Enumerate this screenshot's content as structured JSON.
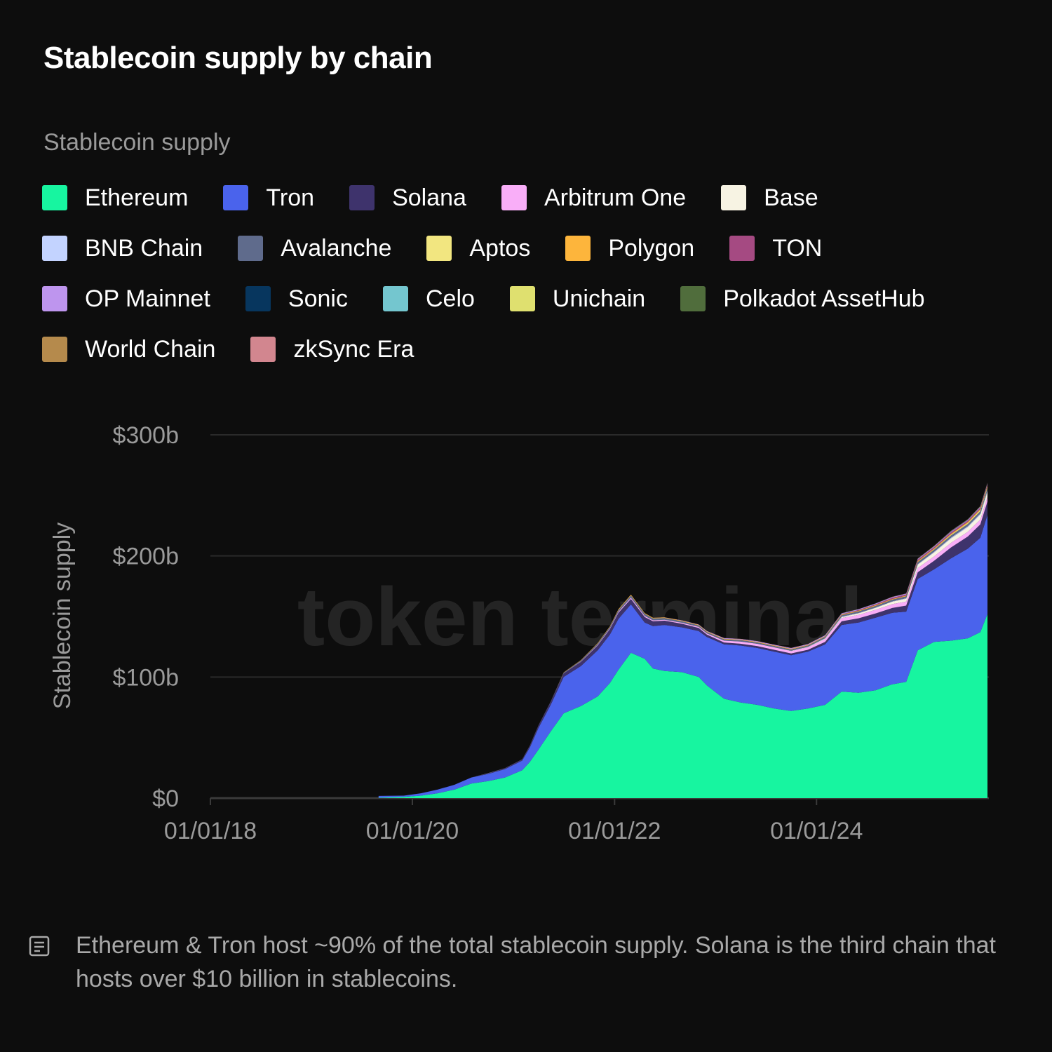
{
  "title": "Stablecoin supply by chain",
  "legend_title": "Stablecoin supply",
  "legend": [
    {
      "label": "Ethereum",
      "color": "#17f5a0"
    },
    {
      "label": "Tron",
      "color": "#4a63ec"
    },
    {
      "label": "Solana",
      "color": "#3e336c"
    },
    {
      "label": "Arbitrum One",
      "color": "#f9aef8"
    },
    {
      "label": "Base",
      "color": "#f7f3e3"
    },
    {
      "label": "BNB Chain",
      "color": "#c3d3ff"
    },
    {
      "label": "Avalanche",
      "color": "#5f6b8c"
    },
    {
      "label": "Aptos",
      "color": "#f2e680"
    },
    {
      "label": "Polygon",
      "color": "#fdb53c"
    },
    {
      "label": "TON",
      "color": "#a54a82"
    },
    {
      "label": "OP Mainnet",
      "color": "#be95ee"
    },
    {
      "label": "Sonic",
      "color": "#07365e"
    },
    {
      "label": "Celo",
      "color": "#74c6cf"
    },
    {
      "label": "Unichain",
      "color": "#dfe06f"
    },
    {
      "label": "Polkadot AssetHub",
      "color": "#506d3c"
    },
    {
      "label": "World Chain",
      "color": "#b58a4c"
    },
    {
      "label": "zkSync Era",
      "color": "#d2868f"
    }
  ],
  "watermark": "token terminal_",
  "note": {
    "icon": "note-icon",
    "text": "Ethereum & Tron host ~90% of the total stablecoin supply. Solana is the third chain that hosts over $10 billion in stablecoins."
  },
  "chart_data": {
    "type": "area",
    "stacked": true,
    "title": "Stablecoin supply by chain",
    "ylabel": "Stablecoin supply",
    "xlabel": "",
    "x_ticks": [
      "01/01/18",
      "01/01/20",
      "01/01/22",
      "01/01/24"
    ],
    "y_ticks": [
      "$0",
      "$100b",
      "$200b",
      "$300b"
    ],
    "ylim": [
      0,
      300
    ],
    "xlim": [
      "2018-01-01",
      "2025-09-15"
    ],
    "y_unit": "billion USD",
    "grid": "horizontal",
    "legend_position": "top",
    "x": [
      "2019-09-01",
      "2019-12-01",
      "2020-02-01",
      "2020-04-01",
      "2020-06-01",
      "2020-08-01",
      "2020-10-01",
      "2020-12-01",
      "2021-02-01",
      "2021-03-01",
      "2021-04-01",
      "2021-05-15",
      "2021-07-01",
      "2021-09-01",
      "2021-11-01",
      "2021-12-15",
      "2022-01-15",
      "2022-03-01",
      "2022-04-20",
      "2022-05-20",
      "2022-07-01",
      "2022-09-01",
      "2022-11-01",
      "2022-12-01",
      "2023-02-01",
      "2023-04-01",
      "2023-06-01",
      "2023-08-01",
      "2023-10-01",
      "2023-12-01",
      "2024-02-01",
      "2024-04-01",
      "2024-06-01",
      "2024-08-01",
      "2024-10-01",
      "2024-11-20",
      "2025-01-01",
      "2025-03-01",
      "2025-05-01",
      "2025-07-01",
      "2025-08-15",
      "2025-09-10"
    ],
    "series": [
      {
        "name": "Ethereum",
        "values": [
          0.3,
          1.0,
          2.0,
          4.0,
          7.0,
          12.0,
          14.0,
          17.0,
          23.0,
          30.0,
          40.0,
          55.0,
          70.0,
          76.0,
          84.0,
          95.0,
          106.0,
          120.0,
          115.0,
          107.0,
          105.0,
          104.0,
          100.0,
          93.0,
          82.0,
          79.0,
          77.0,
          74.0,
          72.0,
          74.0,
          77.0,
          88.0,
          87.0,
          89.0,
          94.0,
          96.0,
          122.0,
          129.0,
          130.0,
          132.0,
          137.0,
          152.0
        ]
      },
      {
        "name": "Tron",
        "values": [
          1.5,
          1.0,
          2.0,
          3.0,
          4.0,
          5.0,
          6.0,
          7.0,
          8.0,
          12.0,
          18.0,
          22.0,
          30.0,
          33.0,
          38.0,
          40.0,
          42.0,
          40.0,
          30.0,
          35.0,
          38.0,
          37.0,
          38.0,
          40.0,
          45.0,
          47.0,
          47.0,
          47.0,
          46.0,
          47.0,
          50.0,
          55.0,
          58.0,
          60.0,
          59.0,
          58.0,
          59.0,
          60.0,
          68.0,
          74.0,
          78.0,
          82.0
        ]
      },
      {
        "name": "Solana",
        "values": [
          0.0,
          0.0,
          0.0,
          0.0,
          0.0,
          0.0,
          0.5,
          0.7,
          1.0,
          1.5,
          2.0,
          2.5,
          3.0,
          3.5,
          4.0,
          4.5,
          5.0,
          4.5,
          4.5,
          4.0,
          3.5,
          3.0,
          2.5,
          2.0,
          1.5,
          1.5,
          1.5,
          1.5,
          1.5,
          1.5,
          2.0,
          3.0,
          3.5,
          3.5,
          4.0,
          5.0,
          5.5,
          7.0,
          9.0,
          10.0,
          11.0,
          11.0
        ]
      },
      {
        "name": "Arbitrum One",
        "values": [
          0,
          0,
          0,
          0,
          0,
          0,
          0,
          0,
          0,
          0,
          0,
          0,
          0,
          0.3,
          0.5,
          0.6,
          0.8,
          1.0,
          0.9,
          0.8,
          0.8,
          0.8,
          0.9,
          1.0,
          1.5,
          1.8,
          1.9,
          2.0,
          2.0,
          2.1,
          2.4,
          2.7,
          2.9,
          3.0,
          3.2,
          3.3,
          3.5,
          3.6,
          3.8,
          3.9,
          4.0,
          4.0
        ]
      },
      {
        "name": "Base",
        "values": [
          0,
          0,
          0,
          0,
          0,
          0,
          0,
          0,
          0,
          0,
          0,
          0,
          0,
          0,
          0,
          0,
          0,
          0,
          0,
          0,
          0,
          0,
          0,
          0,
          0,
          0,
          0,
          0,
          0.2,
          0.3,
          0.5,
          0.8,
          1.2,
          1.6,
          2.0,
          2.4,
          2.8,
          3.2,
          3.6,
          3.9,
          4.1,
          4.2
        ]
      },
      {
        "name": "BNB Chain",
        "values": [
          0,
          0,
          0,
          0,
          0,
          0,
          0.1,
          0.1,
          0.1,
          0.1,
          0.1,
          0.1,
          0.1,
          0.1,
          0.1,
          0.1,
          0.1,
          0.1,
          0.1,
          0.1,
          0.1,
          0.1,
          0.1,
          0.1,
          0.1,
          0.1,
          0.1,
          0.1,
          0.1,
          0.1,
          0.2,
          0.3,
          0.3,
          0.3,
          0.3,
          0.4,
          0.5,
          0.6,
          0.7,
          0.8,
          0.9,
          1.0
        ]
      },
      {
        "name": "Avalanche",
        "values": [
          0,
          0,
          0,
          0,
          0,
          0,
          0,
          0,
          0,
          0,
          0,
          0.2,
          0.5,
          0.8,
          1.0,
          1.2,
          1.5,
          1.8,
          1.7,
          1.5,
          1.3,
          1.2,
          1.1,
          1.0,
          1.0,
          1.0,
          1.0,
          1.0,
          1.0,
          1.0,
          1.1,
          1.2,
          1.3,
          1.3,
          1.4,
          1.5,
          1.6,
          1.7,
          1.8,
          1.8,
          1.9,
          2.0
        ]
      },
      {
        "name": "Aptos",
        "values": [
          0,
          0,
          0,
          0,
          0,
          0,
          0,
          0,
          0,
          0,
          0,
          0,
          0,
          0,
          0,
          0,
          0,
          0,
          0,
          0,
          0,
          0,
          0,
          0,
          0,
          0,
          0,
          0,
          0,
          0,
          0,
          0,
          0,
          0,
          0,
          0,
          0.2,
          0.4,
          0.6,
          0.8,
          1.0,
          1.0
        ]
      },
      {
        "name": "Polygon",
        "values": [
          0,
          0,
          0,
          0,
          0,
          0,
          0,
          0,
          0,
          0,
          0,
          0,
          0.2,
          0.3,
          0.4,
          0.5,
          0.6,
          0.6,
          0.6,
          0.5,
          0.5,
          0.5,
          0.5,
          0.5,
          0.5,
          0.5,
          0.5,
          0.5,
          0.5,
          0.5,
          0.5,
          0.6,
          0.6,
          0.6,
          0.6,
          0.6,
          0.7,
          0.7,
          0.8,
          0.8,
          0.8,
          0.8
        ]
      },
      {
        "name": "TON",
        "values": [
          0,
          0,
          0,
          0,
          0,
          0,
          0,
          0,
          0,
          0,
          0,
          0,
          0,
          0,
          0,
          0,
          0,
          0,
          0,
          0,
          0,
          0,
          0,
          0,
          0,
          0,
          0,
          0,
          0,
          0,
          0.1,
          0.3,
          0.5,
          0.7,
          0.9,
          1.0,
          1.1,
          1.1,
          1.2,
          1.2,
          1.2,
          1.2
        ]
      },
      {
        "name": "OP Mainnet",
        "values": [
          0,
          0,
          0,
          0,
          0,
          0,
          0,
          0,
          0,
          0,
          0,
          0,
          0,
          0,
          0,
          0,
          0,
          0,
          0,
          0,
          0.1,
          0.2,
          0.3,
          0.4,
          0.5,
          0.5,
          0.6,
          0.6,
          0.6,
          0.6,
          0.6,
          0.6,
          0.6,
          0.6,
          0.6,
          0.6,
          0.6,
          0.6,
          0.6,
          0.6,
          0.6,
          0.6
        ]
      },
      {
        "name": "Sonic",
        "values": [
          0,
          0,
          0,
          0,
          0,
          0,
          0,
          0,
          0,
          0,
          0,
          0,
          0,
          0,
          0,
          0,
          0,
          0,
          0,
          0,
          0,
          0,
          0,
          0,
          0,
          0,
          0,
          0,
          0,
          0,
          0,
          0,
          0,
          0,
          0,
          0,
          0.05,
          0.1,
          0.1,
          0.1,
          0.1,
          0.1
        ]
      },
      {
        "name": "Celo",
        "values": [
          0,
          0,
          0,
          0,
          0,
          0,
          0,
          0,
          0,
          0,
          0,
          0,
          0,
          0,
          0,
          0,
          0,
          0,
          0,
          0,
          0,
          0,
          0,
          0,
          0,
          0,
          0,
          0,
          0,
          0.05,
          0.1,
          0.1,
          0.1,
          0.1,
          0.1,
          0.1,
          0.1,
          0.1,
          0.15,
          0.15,
          0.15,
          0.15
        ]
      },
      {
        "name": "Unichain",
        "values": [
          0,
          0,
          0,
          0,
          0,
          0,
          0,
          0,
          0,
          0,
          0,
          0,
          0,
          0,
          0,
          0,
          0,
          0,
          0,
          0,
          0,
          0,
          0,
          0,
          0,
          0,
          0,
          0,
          0,
          0,
          0,
          0,
          0,
          0,
          0,
          0,
          0.05,
          0.1,
          0.1,
          0.1,
          0.15,
          0.15
        ]
      },
      {
        "name": "Polkadot AssetHub",
        "values": [
          0,
          0,
          0,
          0,
          0,
          0,
          0,
          0,
          0,
          0,
          0,
          0,
          0,
          0,
          0,
          0,
          0,
          0,
          0,
          0,
          0,
          0,
          0,
          0,
          0,
          0,
          0,
          0,
          0,
          0,
          0,
          0,
          0,
          0,
          0,
          0,
          0,
          0,
          0.05,
          0.05,
          0.05,
          0.05
        ]
      },
      {
        "name": "World Chain",
        "values": [
          0,
          0,
          0,
          0,
          0,
          0,
          0,
          0,
          0,
          0,
          0,
          0,
          0,
          0,
          0,
          0,
          0,
          0,
          0,
          0,
          0,
          0,
          0,
          0,
          0,
          0,
          0,
          0,
          0,
          0,
          0,
          0,
          0,
          0,
          0.05,
          0.05,
          0.1,
          0.1,
          0.1,
          0.1,
          0.1,
          0.1
        ]
      },
      {
        "name": "zkSync Era",
        "values": [
          0,
          0,
          0,
          0,
          0,
          0,
          0,
          0,
          0,
          0,
          0,
          0,
          0,
          0,
          0,
          0,
          0,
          0,
          0,
          0,
          0,
          0,
          0,
          0,
          0.05,
          0.1,
          0.1,
          0.1,
          0.1,
          0.1,
          0.1,
          0.1,
          0.1,
          0.1,
          0.1,
          0.1,
          0.1,
          0.1,
          0.1,
          0.1,
          0.1,
          0.1
        ]
      }
    ]
  }
}
